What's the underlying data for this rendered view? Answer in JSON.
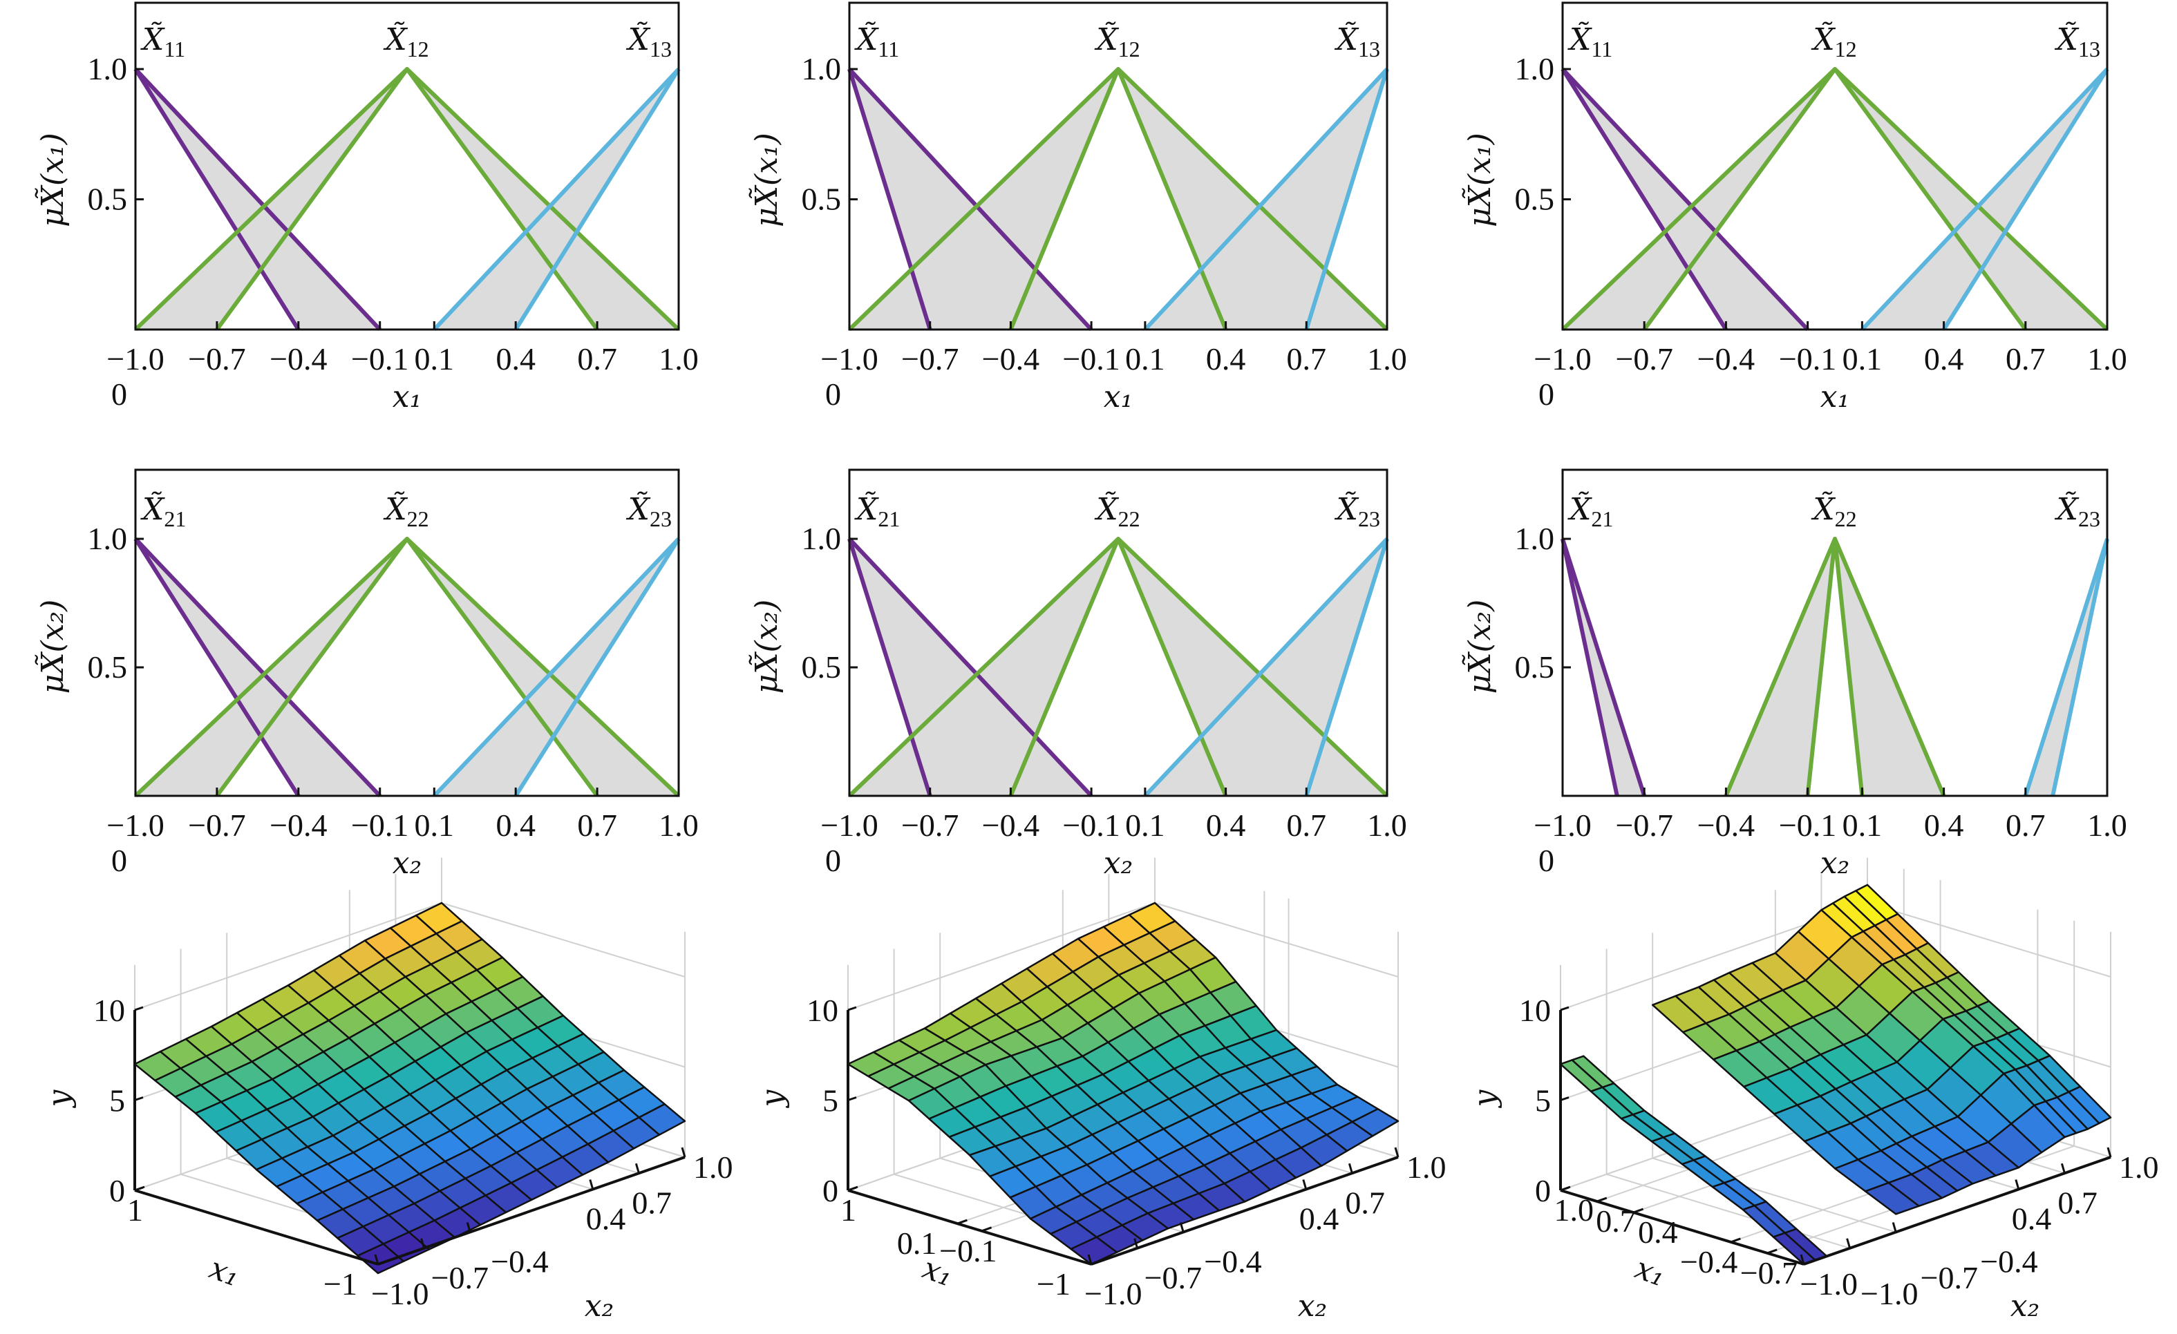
{
  "colors": {
    "purple": "#6b2e8f",
    "green": "#6aab3a",
    "blue": "#5bb5dd",
    "fou_fill": "#dcdcdc",
    "axis": "#111111",
    "mesh": "#111111"
  },
  "membership_charts": [
    {
      "type": "line",
      "xlabel": "x₁",
      "ylabel": "μX̃(x₁)",
      "xlim": [
        -1,
        1
      ],
      "ylim": [
        0,
        1.25
      ],
      "xticks": [
        -1,
        -0.7,
        -0.4,
        -0.1,
        0.1,
        0.4,
        0.7,
        1
      ],
      "xtick_labels": [
        "−1.0",
        "−0.7",
        "−0.4",
        "−0.1",
        "0.1",
        "0.4",
        "0.7",
        "1.0"
      ],
      "yticks": [
        0,
        0.5,
        1
      ],
      "ytick_labels": [
        "0",
        "0.5",
        "1.0"
      ],
      "sets": [
        {
          "label": "X̃",
          "sub": "11",
          "color": "purple",
          "upper": [
            [
              -1,
              1
            ],
            [
              -0.1,
              0
            ]
          ],
          "lower": [
            [
              -1,
              1
            ],
            [
              -0.4,
              0
            ]
          ]
        },
        {
          "label": "X̃",
          "sub": "12",
          "color": "green",
          "upper": [
            [
              -1,
              0
            ],
            [
              0,
              1
            ],
            [
              1,
              0
            ]
          ],
          "lower": [
            [
              -0.7,
              0
            ],
            [
              0,
              1
            ],
            [
              0.7,
              0
            ]
          ]
        },
        {
          "label": "X̃",
          "sub": "13",
          "color": "blue",
          "upper": [
            [
              0.1,
              0
            ],
            [
              1,
              1
            ]
          ],
          "lower": [
            [
              0.4,
              0
            ],
            [
              1,
              1
            ]
          ]
        }
      ]
    },
    {
      "type": "line",
      "xlabel": "x₁",
      "ylabel": "μX̃(x₁)",
      "xlim": [
        -1,
        1
      ],
      "ylim": [
        0,
        1.25
      ],
      "xticks": [
        -1,
        -0.7,
        -0.4,
        -0.1,
        0.1,
        0.4,
        0.7,
        1
      ],
      "xtick_labels": [
        "−1.0",
        "−0.7",
        "−0.4",
        "−0.1",
        "0.1",
        "0.4",
        "0.7",
        "1.0"
      ],
      "yticks": [
        0,
        0.5,
        1
      ],
      "ytick_labels": [
        "0",
        "0.5",
        "1.0"
      ],
      "sets": [
        {
          "label": "X̃",
          "sub": "11",
          "color": "purple",
          "upper": [
            [
              -1,
              1
            ],
            [
              -0.1,
              0
            ]
          ],
          "lower": [
            [
              -1,
              1
            ],
            [
              -0.7,
              0
            ]
          ]
        },
        {
          "label": "X̃",
          "sub": "12",
          "color": "green",
          "upper": [
            [
              -1,
              0
            ],
            [
              0,
              1
            ],
            [
              1,
              0
            ]
          ],
          "lower": [
            [
              -0.4,
              0
            ],
            [
              0,
              1
            ],
            [
              0.4,
              0
            ]
          ]
        },
        {
          "label": "X̃",
          "sub": "13",
          "color": "blue",
          "upper": [
            [
              0.1,
              0
            ],
            [
              1,
              1
            ]
          ],
          "lower": [
            [
              0.7,
              0
            ],
            [
              1,
              1
            ]
          ]
        }
      ]
    },
    {
      "type": "line",
      "xlabel": "x₁",
      "ylabel": "μX̃(x₁)",
      "xlim": [
        -1,
        1
      ],
      "ylim": [
        0,
        1.25
      ],
      "xticks": [
        -1,
        -0.7,
        -0.4,
        -0.1,
        0.1,
        0.4,
        0.7,
        1
      ],
      "xtick_labels": [
        "−1.0",
        "−0.7",
        "−0.4",
        "−0.1",
        "0.1",
        "0.4",
        "0.7",
        "1.0"
      ],
      "yticks": [
        0,
        0.5,
        1
      ],
      "ytick_labels": [
        "0",
        "0.5",
        "1.0"
      ],
      "sets": [
        {
          "label": "X̃",
          "sub": "11",
          "color": "purple",
          "upper": [
            [
              -1,
              1
            ],
            [
              -0.1,
              0
            ]
          ],
          "lower": [
            [
              -1,
              1
            ],
            [
              -0.4,
              0
            ]
          ]
        },
        {
          "label": "X̃",
          "sub": "12",
          "color": "green",
          "upper": [
            [
              -1,
              0
            ],
            [
              0,
              1
            ],
            [
              1,
              0
            ]
          ],
          "lower": [
            [
              -0.7,
              0
            ],
            [
              0,
              1
            ],
            [
              0.7,
              0
            ]
          ]
        },
        {
          "label": "X̃",
          "sub": "13",
          "color": "blue",
          "upper": [
            [
              0.1,
              0
            ],
            [
              1,
              1
            ]
          ],
          "lower": [
            [
              0.4,
              0
            ],
            [
              1,
              1
            ]
          ]
        }
      ]
    },
    {
      "type": "line",
      "xlabel": "x₂",
      "ylabel": "μX̃(x₂)",
      "xlim": [
        -1,
        1
      ],
      "ylim": [
        0,
        1.25
      ],
      "xticks": [
        -1,
        -0.7,
        -0.4,
        -0.1,
        0.1,
        0.4,
        0.7,
        1
      ],
      "xtick_labels": [
        "−1.0",
        "−0.7",
        "−0.4",
        "−0.1",
        "0.1",
        "0.4",
        "0.7",
        "1.0"
      ],
      "yticks": [
        0,
        0.5,
        1
      ],
      "ytick_labels": [
        "0",
        "0.5",
        "1.0"
      ],
      "sets": [
        {
          "label": "X̃",
          "sub": "21",
          "color": "purple",
          "upper": [
            [
              -1,
              1
            ],
            [
              -0.1,
              0
            ]
          ],
          "lower": [
            [
              -1,
              1
            ],
            [
              -0.4,
              0
            ]
          ]
        },
        {
          "label": "X̃",
          "sub": "22",
          "color": "green",
          "upper": [
            [
              -1,
              0
            ],
            [
              0,
              1
            ],
            [
              1,
              0
            ]
          ],
          "lower": [
            [
              -0.7,
              0
            ],
            [
              0,
              1
            ],
            [
              0.7,
              0
            ]
          ]
        },
        {
          "label": "X̃",
          "sub": "23",
          "color": "blue",
          "upper": [
            [
              0.1,
              0
            ],
            [
              1,
              1
            ]
          ],
          "lower": [
            [
              0.4,
              0
            ],
            [
              1,
              1
            ]
          ]
        }
      ]
    },
    {
      "type": "line",
      "xlabel": "x₂",
      "ylabel": "μX̃(x₂)",
      "xlim": [
        -1,
        1
      ],
      "ylim": [
        0,
        1.25
      ],
      "xticks": [
        -1,
        -0.7,
        -0.4,
        -0.1,
        0.1,
        0.4,
        0.7,
        1
      ],
      "xtick_labels": [
        "−1.0",
        "−0.7",
        "−0.4",
        "−0.1",
        "0.1",
        "0.4",
        "0.7",
        "1.0"
      ],
      "yticks": [
        0,
        0.5,
        1
      ],
      "ytick_labels": [
        "0",
        "0.5",
        "1.0"
      ],
      "sets": [
        {
          "label": "X̃",
          "sub": "21",
          "color": "purple",
          "upper": [
            [
              -1,
              1
            ],
            [
              -0.1,
              0
            ]
          ],
          "lower": [
            [
              -1,
              1
            ],
            [
              -0.7,
              0
            ]
          ]
        },
        {
          "label": "X̃",
          "sub": "22",
          "color": "green",
          "upper": [
            [
              -1,
              0
            ],
            [
              0,
              1
            ],
            [
              1,
              0
            ]
          ],
          "lower": [
            [
              -0.4,
              0
            ],
            [
              0,
              1
            ],
            [
              0.4,
              0
            ]
          ]
        },
        {
          "label": "X̃",
          "sub": "23",
          "color": "blue",
          "upper": [
            [
              0.1,
              0
            ],
            [
              1,
              1
            ]
          ],
          "lower": [
            [
              0.7,
              0
            ],
            [
              1,
              1
            ]
          ]
        }
      ]
    },
    {
      "type": "line",
      "xlabel": "x₂",
      "ylabel": "μX̃(x₂)",
      "xlim": [
        -1,
        1
      ],
      "ylim": [
        0,
        1.25
      ],
      "xticks": [
        -1,
        -0.7,
        -0.4,
        -0.1,
        0.1,
        0.4,
        0.7,
        1
      ],
      "xtick_labels": [
        "−1.0",
        "−0.7",
        "−0.4",
        "−0.1",
        "0.1",
        "0.4",
        "0.7",
        "1.0"
      ],
      "yticks": [
        0,
        0.5,
        1
      ],
      "ytick_labels": [
        "0",
        "0.5",
        "1.0"
      ],
      "sets": [
        {
          "label": "X̃",
          "sub": "21",
          "color": "purple",
          "upper": [
            [
              -1,
              1
            ],
            [
              -0.7,
              0
            ]
          ],
          "lower": [
            [
              -1,
              1
            ],
            [
              -0.8,
              0
            ]
          ]
        },
        {
          "label": "X̃",
          "sub": "22",
          "color": "green",
          "upper": [
            [
              -0.4,
              0
            ],
            [
              0,
              1
            ],
            [
              0.4,
              0
            ]
          ],
          "lower": [
            [
              -0.1,
              0
            ],
            [
              0,
              1
            ],
            [
              0.1,
              0
            ]
          ]
        },
        {
          "label": "X̃",
          "sub": "23",
          "color": "blue",
          "upper": [
            [
              0.7,
              0
            ],
            [
              1,
              1
            ]
          ],
          "lower": [
            [
              0.8,
              0
            ],
            [
              1,
              1
            ]
          ]
        }
      ]
    }
  ],
  "surface_charts": [
    {
      "type": "surface",
      "zlabel": "y",
      "x1label": "x₁",
      "x2label": "x₂",
      "zticks": [
        0,
        5,
        10
      ],
      "ztick_labels": [
        "0",
        "5",
        "10"
      ],
      "x1_ticks": [
        1,
        -1
      ],
      "x1_tick_labels": [
        "1",
        "−1"
      ],
      "x2_ticks": [
        -1,
        -0.7,
        -0.4,
        0.4,
        0.7,
        1
      ],
      "x2_tick_labels": [
        "−1.0",
        "−0.7",
        "−0.4",
        "0.4",
        "0.7",
        "1.0"
      ],
      "x1": [
        -1,
        -0.5,
        0,
        0.5,
        1
      ],
      "x2": [
        -1,
        -0.5,
        0,
        0.5,
        1
      ],
      "y": [
        [
          -0.5,
          0,
          0.6,
          1.2,
          2
        ],
        [
          1.4,
          1.8,
          2.4,
          3.2,
          3.8
        ],
        [
          3.2,
          3.6,
          4.4,
          5.3,
          5.8
        ],
        [
          5.3,
          5.7,
          6.5,
          7.4,
          8
        ],
        [
          7,
          7.6,
          8.4,
          9.4,
          10
        ]
      ]
    },
    {
      "type": "surface",
      "zlabel": "y",
      "x1label": "x₁",
      "x2label": "x₂",
      "zticks": [
        0,
        5,
        10
      ],
      "ztick_labels": [
        "0",
        "5",
        "10"
      ],
      "x1_ticks": [
        1,
        0.1,
        -0.1,
        -1
      ],
      "x1_tick_labels": [
        "1",
        "0.1",
        "−0.1",
        "−1"
      ],
      "x2_ticks": [
        -1,
        -0.7,
        -0.4,
        0.4,
        0.7,
        1
      ],
      "x2_tick_labels": [
        "−1.0",
        "−0.7",
        "−0.4",
        "0.4",
        "0.7",
        "1.0"
      ],
      "x1": [
        -1,
        -0.5,
        0,
        0.5,
        1
      ],
      "x2": [
        -1,
        -0.5,
        0,
        0.5,
        1
      ],
      "y": [
        [
          0,
          0.5,
          0.5,
          1,
          2
        ],
        [
          1.5,
          2,
          2.5,
          3,
          3
        ],
        [
          4,
          4,
          4.5,
          5,
          5
        ],
        [
          6,
          6.5,
          6.5,
          7.5,
          8
        ],
        [
          7,
          7.5,
          8.5,
          9.5,
          10
        ]
      ]
    },
    {
      "type": "surface",
      "zlabel": "y",
      "x1label": "x₁",
      "x2label": "x₂",
      "zticks": [
        0,
        5,
        10
      ],
      "ztick_labels": [
        "0",
        "5",
        "10"
      ],
      "x1_ticks": [
        1,
        0.7,
        0.4,
        -0.4,
        -0.7,
        -1
      ],
      "x1_tick_labels": [
        "1.0",
        "0.7",
        "0.4",
        "−0.4",
        "−0.7",
        "−1.0"
      ],
      "x2_ticks": [
        -1,
        -0.7,
        -0.4,
        0.4,
        0.7,
        1
      ],
      "x2_tick_labels": [
        "−1.0",
        "−0.7",
        "−0.4",
        "0.4",
        "0.7",
        "1.0"
      ],
      "x1": [
        -1,
        -0.5,
        0,
        0.5,
        1
      ],
      "x2": [
        -1,
        -0.85,
        -0.7,
        -0.4,
        -0.1,
        0.1,
        0.4,
        0.7,
        0.85,
        1
      ],
      "y": [
        [
          0,
          0,
          null,
          1,
          1,
          1.2,
          1.2,
          2,
          2,
          2.2
        ],
        [
          2,
          2,
          null,
          2.5,
          2.6,
          2.8,
          3,
          4.5,
          4.5,
          4.6
        ],
        [
          3.5,
          3.5,
          null,
          4.5,
          4.6,
          4.8,
          5,
          6.5,
          6.5,
          6.6
        ],
        [
          5,
          5,
          null,
          6.5,
          6.6,
          6.8,
          7,
          8.5,
          8.6,
          8.8
        ],
        [
          7,
          7,
          null,
          8.5,
          8.6,
          8.8,
          9,
          10.5,
          10.8,
          11
        ]
      ]
    }
  ]
}
